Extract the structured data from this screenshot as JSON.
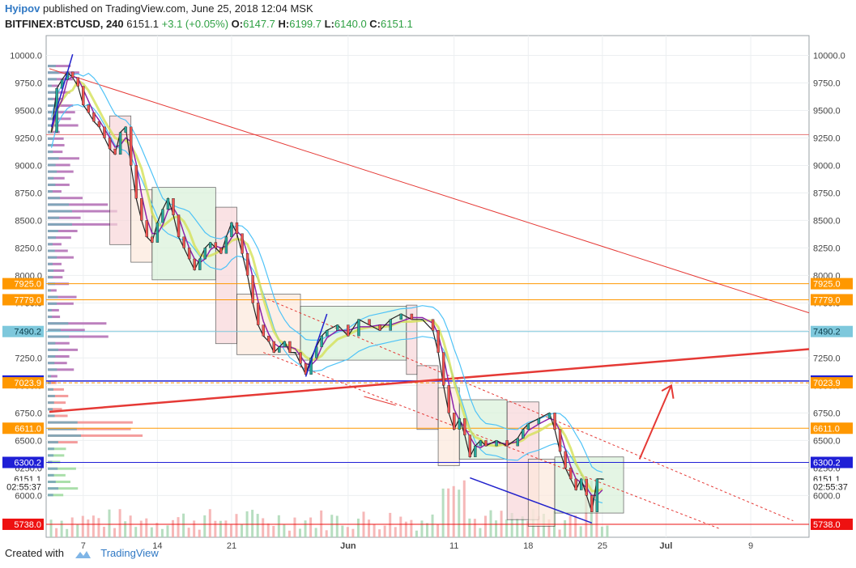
{
  "header": {
    "author": "Hyipov",
    "published_text": "published on TradingView.com, June 25, 2018 12:04 MSK"
  },
  "quote": {
    "symbol": "BITFINEX:BTCUSD, 240",
    "last": "6151.1",
    "change": "+3.1 (+0.05%)",
    "open_label": "O:",
    "open": "6147.7",
    "high_label": "H:",
    "high": "6199.7",
    "low_label": "L:",
    "low": "6140.0",
    "close_label": "C:",
    "close": "6151.1"
  },
  "footer": {
    "created_with": "Created with",
    "brand": "TradingView"
  },
  "chart_data": {
    "type": "line",
    "title": "",
    "ylim": [
      5620,
      10180
    ],
    "y_ticks": [
      "10000.0",
      "9750.0",
      "9500.0",
      "9250.0",
      "9000.0",
      "8750.0",
      "8500.0",
      "8250.0",
      "8000.0",
      "7750.0",
      "7500.0",
      "7250.0",
      "7000.0",
      "6750.0",
      "6500.0",
      "6250.0",
      "6000.0"
    ],
    "x_ticks": [
      {
        "label": "7",
        "day": 7
      },
      {
        "label": "14",
        "day": 14
      },
      {
        "label": "21",
        "day": 21
      },
      {
        "label": "Jun",
        "day": 32
      },
      {
        "label": "11",
        "day": 42
      },
      {
        "label": "18",
        "day": 49
      },
      {
        "label": "25",
        "day": 56
      },
      {
        "label": "Jul",
        "day": 62
      },
      {
        "label": "9",
        "day": 70
      }
    ],
    "x_range_days": [
      3.5,
      75.5
    ],
    "price_line": [
      [
        4.0,
        9300
      ],
      [
        4.5,
        9700
      ],
      [
        5.0,
        9780
      ],
      [
        5.5,
        9850
      ],
      [
        6.0,
        9800
      ],
      [
        6.5,
        9720
      ],
      [
        7.0,
        9550
      ],
      [
        7.5,
        9480
      ],
      [
        8.0,
        9400
      ],
      [
        8.5,
        9350
      ],
      [
        9.0,
        9250
      ],
      [
        9.5,
        9150
      ],
      [
        10.0,
        9100
      ],
      [
        10.5,
        9300
      ],
      [
        11.0,
        9350
      ],
      [
        11.5,
        9000
      ],
      [
        12.0,
        8700
      ],
      [
        12.5,
        8500
      ],
      [
        13.0,
        8350
      ],
      [
        13.5,
        8300
      ],
      [
        14.0,
        8480
      ],
      [
        14.5,
        8600
      ],
      [
        15.0,
        8700
      ],
      [
        15.5,
        8550
      ],
      [
        16.0,
        8350
      ],
      [
        16.5,
        8250
      ],
      [
        17.0,
        8150
      ],
      [
        17.5,
        8050
      ],
      [
        18.0,
        8150
      ],
      [
        18.5,
        8250
      ],
      [
        19.0,
        8300
      ],
      [
        19.5,
        8250
      ],
      [
        20.0,
        8200
      ],
      [
        20.5,
        8350
      ],
      [
        21.0,
        8480
      ],
      [
        21.5,
        8380
      ],
      [
        22.0,
        8200
      ],
      [
        22.5,
        8000
      ],
      [
        23.0,
        7750
      ],
      [
        23.5,
        7550
      ],
      [
        24.0,
        7450
      ],
      [
        24.5,
        7400
      ],
      [
        25.0,
        7300
      ],
      [
        25.5,
        7350
      ],
      [
        26.0,
        7400
      ],
      [
        26.5,
        7300
      ],
      [
        27.0,
        7300
      ],
      [
        27.5,
        7200
      ],
      [
        28.0,
        7100
      ],
      [
        28.5,
        7250
      ],
      [
        29.0,
        7350
      ],
      [
        29.5,
        7450
      ],
      [
        30.0,
        7500
      ],
      [
        31.0,
        7550
      ],
      [
        32.0,
        7450
      ],
      [
        33.0,
        7600
      ],
      [
        34.0,
        7550
      ],
      [
        35.0,
        7500
      ],
      [
        36.0,
        7600
      ],
      [
        37.0,
        7650
      ],
      [
        38.0,
        7600
      ],
      [
        39.0,
        7600
      ],
      [
        40.0,
        7500
      ],
      [
        40.5,
        7300
      ],
      [
        41.0,
        7000
      ],
      [
        41.5,
        6750
      ],
      [
        42.0,
        6600
      ],
      [
        42.5,
        6700
      ],
      [
        43.0,
        6550
      ],
      [
        43.5,
        6350
      ],
      [
        44.0,
        6450
      ],
      [
        44.5,
        6500
      ],
      [
        45.0,
        6450
      ],
      [
        46.0,
        6500
      ],
      [
        47.0,
        6450
      ],
      [
        48.0,
        6520
      ],
      [
        48.5,
        6600
      ],
      [
        49.0,
        6650
      ],
      [
        50.0,
        6700
      ],
      [
        51.0,
        6750
      ],
      [
        51.5,
        6600
      ],
      [
        52.0,
        6400
      ],
      [
        52.5,
        6250
      ],
      [
        53.0,
        6150
      ],
      [
        53.5,
        6050
      ],
      [
        54.0,
        6150
      ],
      [
        54.5,
        6000
      ],
      [
        55.0,
        5850
      ],
      [
        55.5,
        6150
      ],
      [
        56.0,
        6151
      ]
    ],
    "price_levels": [
      {
        "label": "7925.0",
        "value": 7925,
        "color": "#ff9800"
      },
      {
        "label": "7779.0",
        "value": 7779,
        "color": "#ff9800"
      },
      {
        "label": "7490.2",
        "value": 7490.2,
        "color": "#7ec8dc"
      },
      {
        "label": "7040.0",
        "value": 7040,
        "color": "#1f1fd6"
      },
      {
        "label": "7023.9",
        "value": 7023.9,
        "color": "#ff9800"
      },
      {
        "label": "6611.0",
        "value": 6611,
        "color": "#ff9800"
      },
      {
        "label": "6300.2",
        "value": 6300.2,
        "color": "#1f1fd6"
      },
      {
        "label": "6151.1",
        "value": 6151.1,
        "color": "#ffffff"
      },
      {
        "label": "02:55:37",
        "value": 6080,
        "color": "#ffffff"
      },
      {
        "label": "5738.0",
        "value": 5738,
        "color": "#ee1111"
      }
    ]
  }
}
